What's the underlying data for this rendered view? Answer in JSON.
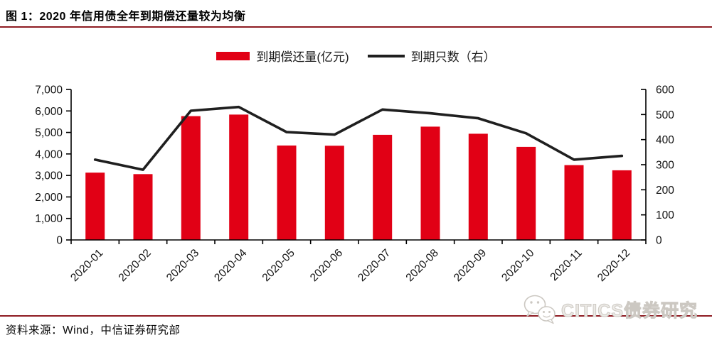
{
  "header": {
    "title": "图 1：2020 年信用债全年到期偿还量较为均衡"
  },
  "chart_data": {
    "type": "bar+line combo",
    "categories": [
      "2020-01",
      "2020-02",
      "2020-03",
      "2020-04",
      "2020-05",
      "2020-06",
      "2020-07",
      "2020-08",
      "2020-09",
      "2020-10",
      "2020-11",
      "2020-12"
    ],
    "series": [
      {
        "name": "到期偿还量(亿元)",
        "type": "bar",
        "axis": "left",
        "color": "#e10015",
        "values": [
          3130,
          3060,
          5760,
          5830,
          4390,
          4380,
          4890,
          5270,
          4940,
          4330,
          3480,
          3240
        ]
      },
      {
        "name": "到期只数（右）",
        "type": "line",
        "axis": "right",
        "color": "#1f1f1f",
        "values": [
          320,
          280,
          515,
          530,
          430,
          420,
          520,
          505,
          485,
          425,
          320,
          335
        ]
      }
    ],
    "left_axis": {
      "min": 0,
      "max": 7000,
      "step": 1000,
      "tick_labels": [
        "0",
        "1,000",
        "2,000",
        "3,000",
        "4,000",
        "5,000",
        "6,000",
        "7,000"
      ]
    },
    "right_axis": {
      "min": 0,
      "max": 600,
      "step": 100,
      "tick_labels": [
        "0",
        "100",
        "200",
        "300",
        "400",
        "500",
        "600"
      ]
    },
    "grid": false,
    "legend_position": "top"
  },
  "footer": {
    "source": "资料来源：Wind，中信证券研究部",
    "watermark": "CITICS债券研究"
  },
  "colors": {
    "rule": "#8e1b22",
    "axis": "#000000",
    "tick_text": "#111111",
    "watermark_gray": "#ccc8c2"
  }
}
